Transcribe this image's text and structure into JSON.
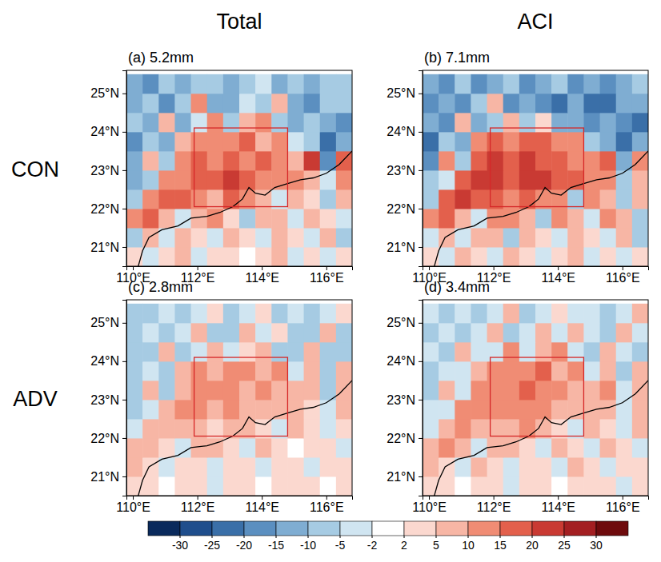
{
  "column_titles": [
    "Total",
    "ACI"
  ],
  "row_titles": [
    "CON",
    "ADV"
  ],
  "colorbar": {
    "ticks": [
      -30,
      -25,
      -20,
      -15,
      -10,
      -5,
      -2,
      2,
      5,
      10,
      15,
      20,
      25,
      30
    ],
    "colors": [
      "#0a2a5c",
      "#1f4e8c",
      "#3a6fa8",
      "#5b8fc0",
      "#7fadd2",
      "#a6cbe3",
      "#d0e5f1",
      "#ffffff",
      "#fbd8cf",
      "#f7b6a5",
      "#f08c74",
      "#e3604c",
      "#c93a33",
      "#a31f22",
      "#6e0b0d"
    ]
  },
  "chart_data": [
    {
      "type": "heatmap",
      "title": "(a) 5.2mm",
      "x": [
        110.05,
        110.55,
        111.05,
        111.55,
        112.05,
        112.55,
        113.05,
        113.55,
        114.05,
        114.55,
        115.05,
        115.55,
        116.05,
        116.55
      ],
      "y": [
        20.75,
        21.25,
        21.75,
        22.25,
        22.75,
        23.25,
        23.75,
        24.25,
        24.75,
        25.25
      ],
      "values": [
        [
          2,
          -5,
          3,
          5,
          -3,
          4,
          2,
          -2,
          3,
          5,
          -3,
          2,
          -4,
          3
        ],
        [
          -8,
          5,
          -3,
          8,
          4,
          -5,
          6,
          3,
          -4,
          7,
          2,
          -3,
          5,
          -6
        ],
        [
          12,
          15,
          6,
          -4,
          8,
          10,
          4,
          -6,
          9,
          5,
          -3,
          8,
          4,
          -5
        ],
        [
          -10,
          14,
          18,
          16,
          12,
          8,
          15,
          10,
          6,
          -5,
          9,
          4,
          -8,
          6
        ],
        [
          -12,
          -6,
          10,
          14,
          18,
          15,
          20,
          16,
          12,
          14,
          10,
          8,
          -4,
          10
        ],
        [
          -15,
          8,
          -10,
          12,
          16,
          14,
          18,
          12,
          15,
          10,
          8,
          22,
          -18,
          15
        ],
        [
          -20,
          -8,
          -12,
          6,
          14,
          10,
          12,
          15,
          8,
          12,
          -5,
          -10,
          -22,
          -12
        ],
        [
          -10,
          -15,
          8,
          -12,
          -5,
          10,
          -8,
          6,
          12,
          -10,
          -15,
          -8,
          -12,
          -18
        ],
        [
          -15,
          -10,
          -18,
          -8,
          10,
          -15,
          -12,
          -5,
          -10,
          6,
          -12,
          -20,
          -8,
          -10
        ],
        [
          -12,
          -18,
          -8,
          -15,
          -10,
          -6,
          -15,
          -10,
          -5,
          -12,
          -8,
          -15,
          -10,
          -6
        ]
      ],
      "region": {
        "lon": [
          111.9,
          114.8
        ],
        "lat": [
          22.05,
          24.1
        ]
      },
      "xlim": [
        109.8,
        116.8
      ],
      "ylim": [
        20.5,
        25.6
      ],
      "xticks": [
        {
          "value": 110,
          "label": "110°E"
        },
        {
          "value": 112,
          "label": "112°E"
        },
        {
          "value": 114,
          "label": "114°E"
        },
        {
          "value": 116,
          "label": "116°E"
        }
      ],
      "yticks": [
        {
          "value": 21,
          "label": "21°N"
        },
        {
          "value": 22,
          "label": "22°N"
        },
        {
          "value": 23,
          "label": "23°N"
        },
        {
          "value": 24,
          "label": "24°N"
        },
        {
          "value": 25,
          "label": "25°N"
        }
      ]
    },
    {
      "type": "heatmap",
      "title": "(b) 7.1mm",
      "x": [
        110.05,
        110.55,
        111.05,
        111.55,
        112.05,
        112.55,
        113.05,
        113.55,
        114.05,
        114.55,
        115.05,
        115.55,
        116.05,
        116.55
      ],
      "y": [
        20.75,
        21.25,
        21.75,
        22.25,
        22.75,
        23.25,
        23.75,
        24.25,
        24.75,
        25.25
      ],
      "values": [
        [
          3,
          -4,
          5,
          4,
          -3,
          6,
          3,
          -3,
          4,
          6,
          -4,
          3,
          -5,
          4
        ],
        [
          -5,
          6,
          -4,
          9,
          5,
          -6,
          7,
          4,
          -5,
          8,
          3,
          -4,
          6,
          -8
        ],
        [
          14,
          18,
          8,
          -5,
          10,
          12,
          6,
          -8,
          10,
          6,
          -4,
          10,
          5,
          -6
        ],
        [
          -8,
          16,
          20,
          18,
          15,
          12,
          18,
          14,
          10,
          -6,
          12,
          6,
          -10,
          8
        ],
        [
          -10,
          -5,
          15,
          20,
          22,
          18,
          24,
          20,
          18,
          15,
          14,
          12,
          -6,
          8
        ],
        [
          -18,
          10,
          -8,
          16,
          20,
          18,
          22,
          16,
          18,
          14,
          12,
          15,
          -15,
          10
        ],
        [
          -22,
          -10,
          -15,
          10,
          16,
          14,
          15,
          18,
          12,
          14,
          -8,
          -15,
          -25,
          -15
        ],
        [
          -12,
          -18,
          6,
          -15,
          -8,
          8,
          -10,
          4,
          -12,
          -15,
          -20,
          -12,
          -18,
          -22
        ],
        [
          -18,
          -12,
          -20,
          -10,
          8,
          -18,
          -15,
          -20,
          -25,
          -15,
          -22,
          -25,
          -12,
          -15
        ],
        [
          -15,
          -20,
          -10,
          -18,
          -12,
          -8,
          -18,
          -15,
          -10,
          -20,
          -12,
          -18,
          -15,
          -10
        ]
      ],
      "region": {
        "lon": [
          111.9,
          114.8
        ],
        "lat": [
          22.05,
          24.1
        ]
      },
      "xlim": [
        109.8,
        116.8
      ],
      "ylim": [
        20.5,
        25.6
      ],
      "xticks": [
        {
          "value": 110,
          "label": "110°E"
        },
        {
          "value": 112,
          "label": "112°E"
        },
        {
          "value": 114,
          "label": "114°E"
        },
        {
          "value": 116,
          "label": "116°E"
        }
      ],
      "yticks": [
        {
          "value": 21,
          "label": "21°N"
        },
        {
          "value": 22,
          "label": "22°N"
        },
        {
          "value": 23,
          "label": "23°N"
        },
        {
          "value": 24,
          "label": "24°N"
        },
        {
          "value": 25,
          "label": "25°N"
        }
      ]
    },
    {
      "type": "heatmap",
      "title": "(c) 2.8mm",
      "x": [
        110.05,
        110.55,
        111.05,
        111.55,
        112.05,
        112.55,
        113.05,
        113.55,
        114.05,
        114.55,
        115.05,
        115.55,
        116.05,
        116.55
      ],
      "y": [
        20.75,
        21.25,
        21.75,
        22.25,
        22.75,
        23.25,
        23.75,
        24.25,
        24.75,
        25.25
      ],
      "values": [
        [
          3,
          2,
          -2,
          3,
          2,
          -3,
          2,
          3,
          -2,
          2,
          3,
          2,
          -2,
          3
        ],
        [
          5,
          3,
          -3,
          4,
          2,
          -4,
          3,
          2,
          -3,
          4,
          2,
          -3,
          2,
          3
        ],
        [
          6,
          8,
          4,
          -3,
          5,
          6,
          3,
          -4,
          5,
          3,
          -2,
          4,
          3,
          -4
        ],
        [
          -4,
          6,
          8,
          7,
          6,
          4,
          8,
          5,
          3,
          -3,
          5,
          3,
          -4,
          4
        ],
        [
          -6,
          -3,
          8,
          10,
          12,
          9,
          10,
          8,
          6,
          7,
          5,
          4,
          -3,
          6
        ],
        [
          -8,
          5,
          -6,
          8,
          12,
          10,
          14,
          8,
          10,
          6,
          5,
          8,
          -6,
          7
        ],
        [
          -10,
          -4,
          -6,
          5,
          10,
          8,
          12,
          14,
          6,
          10,
          -4,
          6,
          -10,
          5
        ],
        [
          -6,
          -8,
          5,
          -6,
          -3,
          8,
          -5,
          4,
          8,
          -6,
          -8,
          5,
          -6,
          -8
        ],
        [
          -8,
          -5,
          -10,
          -4,
          6,
          -8,
          -6,
          5,
          -5,
          4,
          -6,
          -10,
          5,
          -6
        ],
        [
          -6,
          -10,
          -4,
          -8,
          -5,
          4,
          -8,
          -5,
          3,
          -6,
          -4,
          -8,
          -5,
          4
        ]
      ],
      "region": {
        "lon": [
          111.9,
          114.8
        ],
        "lat": [
          22.05,
          24.1
        ]
      },
      "xlim": [
        109.8,
        116.8
      ],
      "ylim": [
        20.5,
        25.6
      ],
      "xticks": [
        {
          "value": 110,
          "label": "110°E"
        },
        {
          "value": 112,
          "label": "112°E"
        },
        {
          "value": 114,
          "label": "114°E"
        },
        {
          "value": 116,
          "label": "116°E"
        }
      ],
      "yticks": [
        {
          "value": 21,
          "label": "21°N"
        },
        {
          "value": 22,
          "label": "22°N"
        },
        {
          "value": 23,
          "label": "23°N"
        },
        {
          "value": 24,
          "label": "24°N"
        },
        {
          "value": 25,
          "label": "25°N"
        }
      ]
    },
    {
      "type": "heatmap",
      "title": "(d) 3.4mm",
      "x": [
        110.05,
        110.55,
        111.05,
        111.55,
        112.05,
        112.55,
        113.05,
        113.55,
        114.05,
        114.55,
        115.05,
        115.55,
        116.05,
        116.55
      ],
      "y": [
        20.75,
        21.25,
        21.75,
        22.25,
        22.75,
        23.25,
        23.75,
        24.25,
        24.75,
        25.25
      ],
      "values": [
        [
          4,
          2,
          -2,
          4,
          3,
          -3,
          2,
          4,
          -2,
          3,
          4,
          2,
          -3,
          3
        ],
        [
          6,
          4,
          -3,
          5,
          3,
          -4,
          4,
          3,
          -4,
          5,
          3,
          -3,
          3,
          4
        ],
        [
          8,
          10,
          5,
          -3,
          6,
          8,
          4,
          -5,
          6,
          4,
          -3,
          5,
          4,
          -4
        ],
        [
          -3,
          8,
          10,
          9,
          8,
          6,
          10,
          6,
          4,
          -3,
          6,
          4,
          -5,
          5
        ],
        [
          -5,
          -3,
          10,
          12,
          14,
          11,
          12,
          10,
          8,
          9,
          6,
          5,
          -4,
          7
        ],
        [
          -6,
          6,
          -5,
          10,
          14,
          12,
          15,
          10,
          12,
          8,
          6,
          10,
          -5,
          8
        ],
        [
          -8,
          -3,
          -5,
          6,
          12,
          10,
          14,
          15,
          8,
          12,
          -3,
          8,
          -8,
          6
        ],
        [
          -5,
          -6,
          6,
          -5,
          -3,
          10,
          -4,
          5,
          10,
          -5,
          -6,
          6,
          -5,
          -6
        ],
        [
          -6,
          -4,
          -8,
          -3,
          8,
          -6,
          -5,
          6,
          -4,
          5,
          -5,
          -8,
          6,
          -5
        ],
        [
          -5,
          -8,
          -3,
          -6,
          -4,
          5,
          -6,
          -4,
          4,
          -5,
          -3,
          -6,
          -4,
          5
        ]
      ],
      "region": {
        "lon": [
          111.9,
          114.8
        ],
        "lat": [
          22.05,
          24.1
        ]
      },
      "xlim": [
        109.8,
        116.8
      ],
      "ylim": [
        20.5,
        25.6
      ],
      "xticks": [
        {
          "value": 110,
          "label": "110°E"
        },
        {
          "value": 112,
          "label": "112°E"
        },
        {
          "value": 114,
          "label": "114°E"
        },
        {
          "value": 116,
          "label": "116°E"
        }
      ],
      "yticks": [
        {
          "value": 21,
          "label": "21°N"
        },
        {
          "value": 22,
          "label": "22°N"
        },
        {
          "value": 23,
          "label": "23°N"
        },
        {
          "value": 24,
          "label": "24°N"
        },
        {
          "value": 25,
          "label": "25°N"
        }
      ]
    }
  ]
}
